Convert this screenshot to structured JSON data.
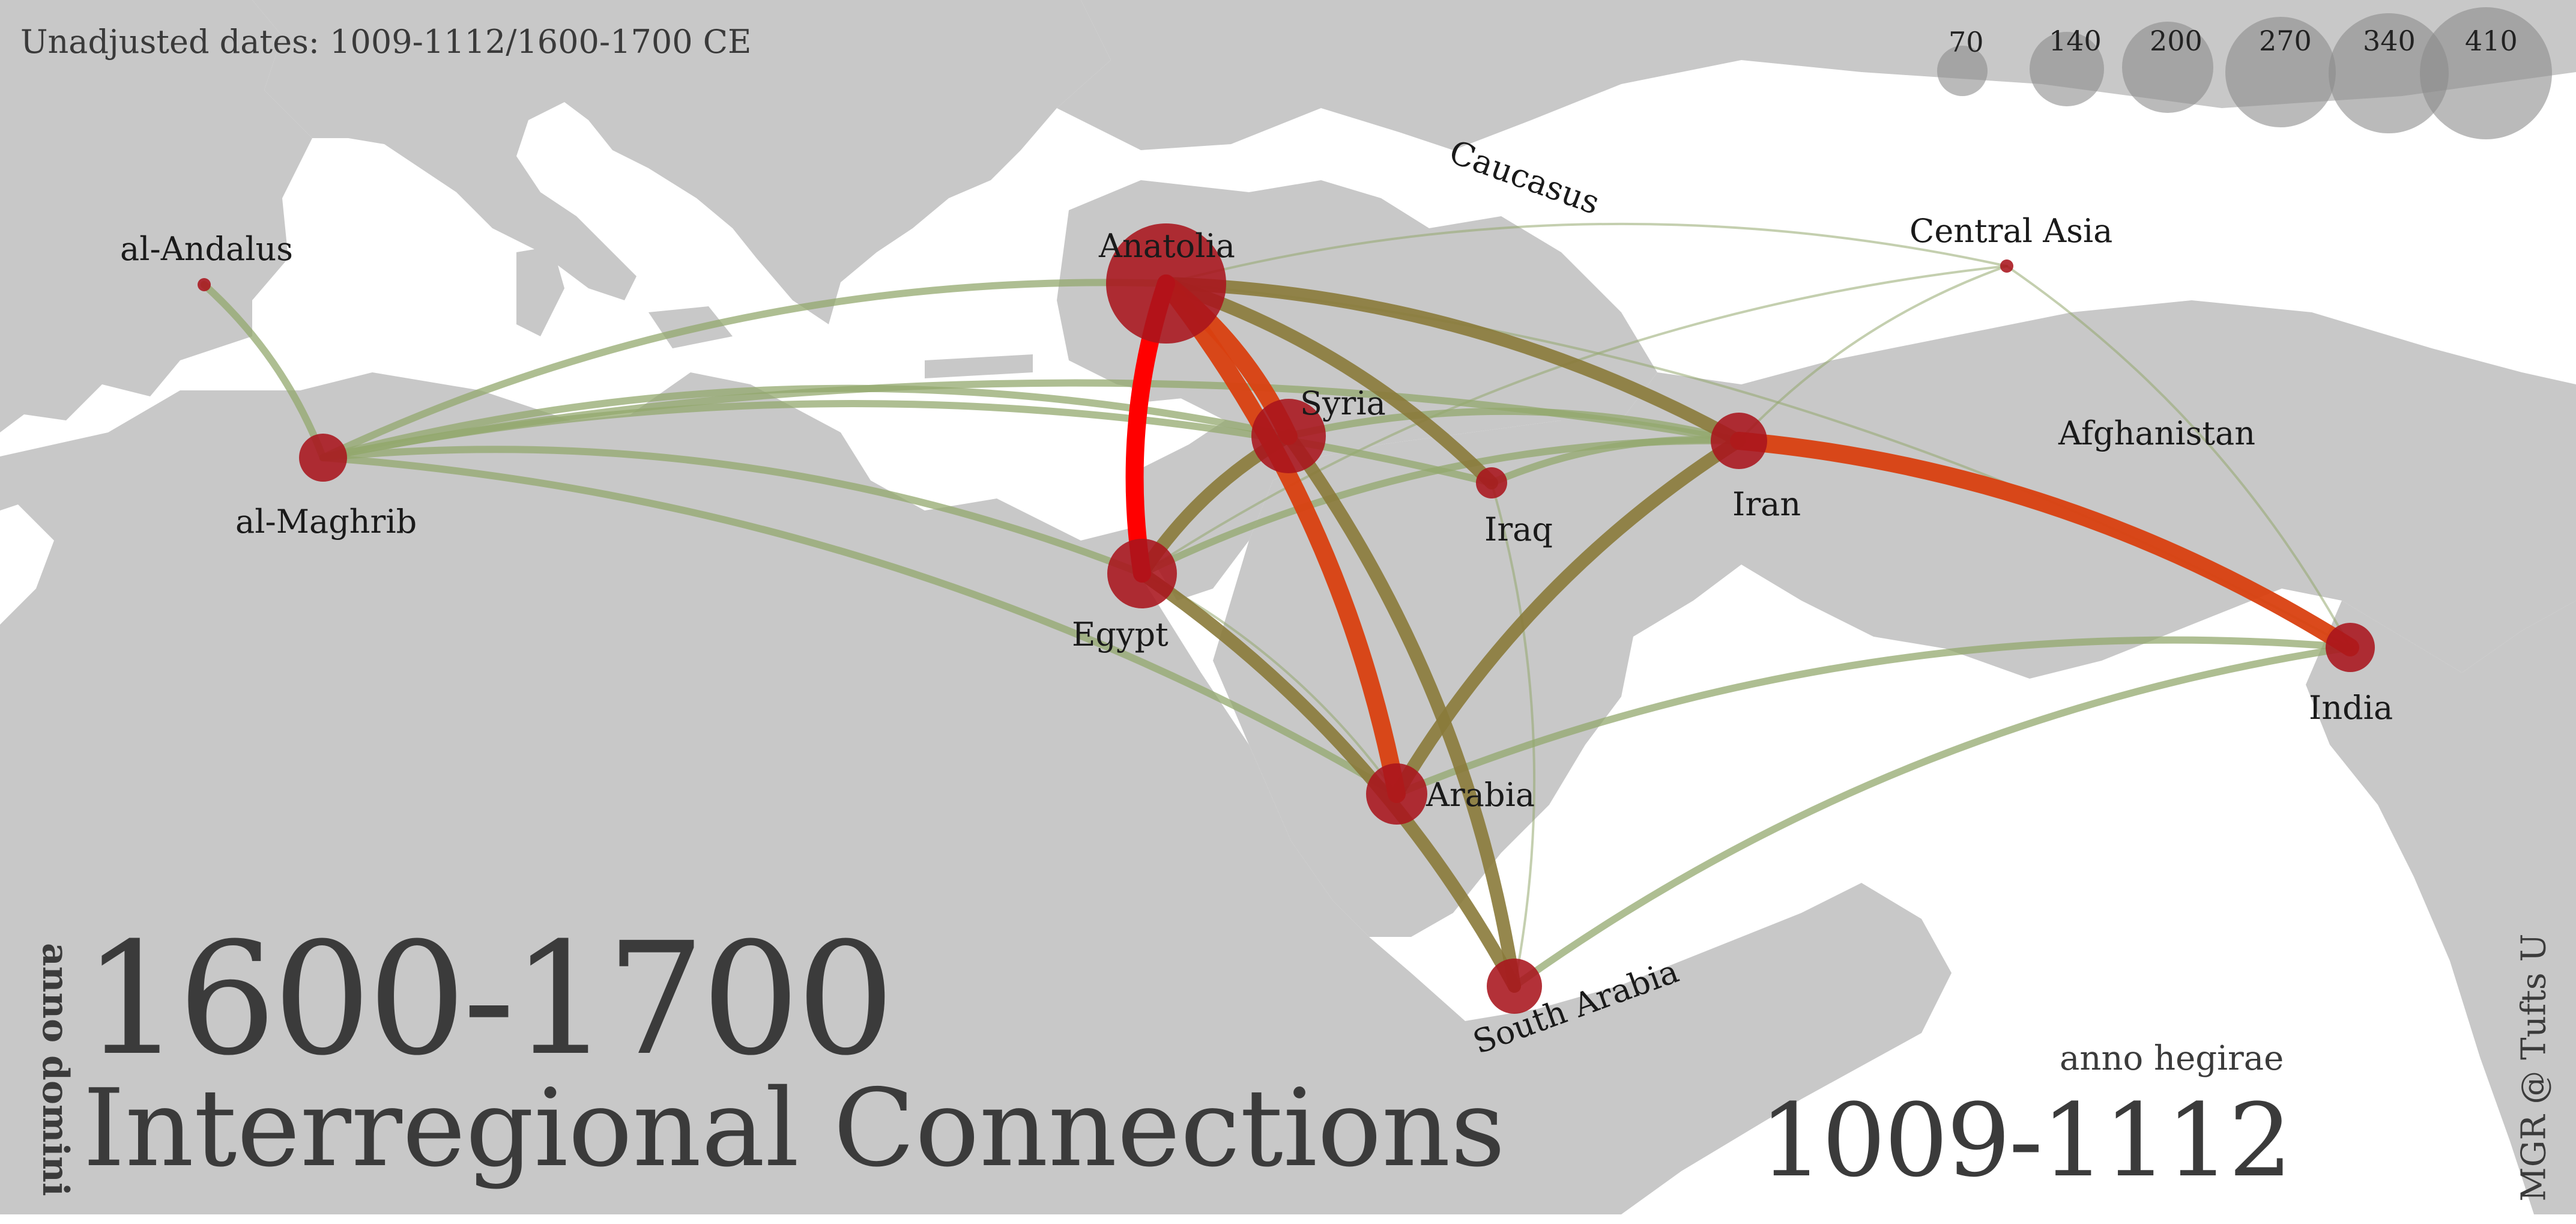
{
  "note": "Unadjusted dates: 1009-1112/1600-1700 CE",
  "era": {
    "ad_label": "anno domini",
    "ad_years": "1600-1700",
    "ah_label": "anno hegirae",
    "ah_years": "1009-1112"
  },
  "title": "Interregional Connections",
  "credit": "MGR @ Tufts U",
  "colors": {
    "land": "#c8c8c8",
    "node": "#a8141c",
    "edge_weak": "#93a86d",
    "edge_mid": "#8a7a3a",
    "edge_strong": "#d94010",
    "edge_max": "#ff0000"
  },
  "legend": {
    "sizes": [
      "70",
      "140",
      "200",
      "270",
      "340",
      "410"
    ]
  },
  "regions": [
    {
      "id": "al-andalus",
      "label": "al-Andalus"
    },
    {
      "id": "al-maghrib",
      "label": "al-Maghrib"
    },
    {
      "id": "anatolia",
      "label": "Anatolia"
    },
    {
      "id": "syria",
      "label": "Syria"
    },
    {
      "id": "egypt",
      "label": "Egypt"
    },
    {
      "id": "iraq",
      "label": "Iraq"
    },
    {
      "id": "iran",
      "label": "Iran"
    },
    {
      "id": "central-asia",
      "label": "Central Asia"
    },
    {
      "id": "india",
      "label": "India"
    },
    {
      "id": "arabia",
      "label": "Arabia"
    },
    {
      "id": "south-arabia",
      "label": "South Arabia"
    }
  ],
  "place_labels": {
    "caucasus": "Caucasus",
    "afghanistan": "Afghanistan"
  },
  "connections": [
    {
      "from": "anatolia",
      "to": "egypt",
      "strength": "max"
    },
    {
      "from": "anatolia",
      "to": "arabia",
      "strength": "strong"
    },
    {
      "from": "iran",
      "to": "india",
      "strength": "strong"
    },
    {
      "from": "anatolia",
      "to": "syria",
      "strength": "strong"
    },
    {
      "from": "syria",
      "to": "south-arabia",
      "strength": "mid"
    },
    {
      "from": "egypt",
      "to": "south-arabia",
      "strength": "mid"
    },
    {
      "from": "arabia",
      "to": "iran",
      "strength": "mid"
    },
    {
      "from": "anatolia",
      "to": "iran",
      "strength": "mid"
    },
    {
      "from": "egypt",
      "to": "syria",
      "strength": "mid"
    },
    {
      "from": "anatolia",
      "to": "iraq",
      "strength": "mid"
    },
    {
      "from": "al-andalus",
      "to": "al-maghrib",
      "strength": "weak"
    },
    {
      "from": "al-maghrib",
      "to": "anatolia",
      "strength": "weak"
    },
    {
      "from": "al-maghrib",
      "to": "egypt",
      "strength": "weak"
    },
    {
      "from": "al-maghrib",
      "to": "syria",
      "strength": "weak"
    },
    {
      "from": "al-maghrib",
      "to": "iraq",
      "strength": "weak"
    },
    {
      "from": "al-maghrib",
      "to": "iran",
      "strength": "weak"
    },
    {
      "from": "al-maghrib",
      "to": "arabia",
      "strength": "weak"
    },
    {
      "from": "syria",
      "to": "iran",
      "strength": "weak"
    },
    {
      "from": "iraq",
      "to": "iran",
      "strength": "weak"
    },
    {
      "from": "egypt",
      "to": "iran",
      "strength": "weak"
    },
    {
      "from": "arabia",
      "to": "india",
      "strength": "weak"
    },
    {
      "from": "south-arabia",
      "to": "india",
      "strength": "weak"
    },
    {
      "from": "iraq",
      "to": "south-arabia",
      "strength": "faint"
    },
    {
      "from": "anatolia",
      "to": "central-asia",
      "strength": "faint"
    },
    {
      "from": "iran",
      "to": "central-asia",
      "strength": "faint"
    },
    {
      "from": "central-asia",
      "to": "india",
      "strength": "faint"
    },
    {
      "from": "anatolia",
      "to": "india",
      "strength": "faint"
    },
    {
      "from": "egypt",
      "to": "central-asia",
      "strength": "faint"
    },
    {
      "from": "egypt",
      "to": "arabia",
      "strength": "faint"
    }
  ]
}
